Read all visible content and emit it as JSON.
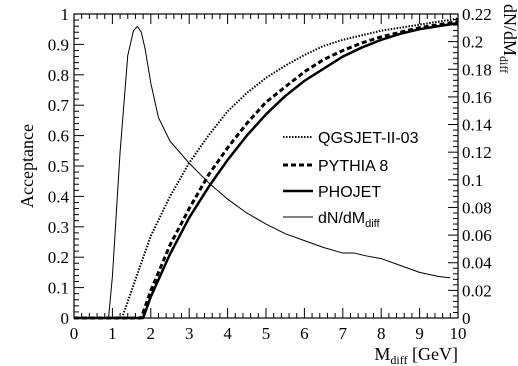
{
  "chart_data": {
    "type": "line",
    "title": "",
    "xlabel": "M",
    "xlabel_sub": "diff",
    "xlabel_unit": " [GeV]",
    "ylabel": "Acceptance",
    "y2label": "dN/dM",
    "y2label_sub": "diff",
    "xlim": [
      0,
      10
    ],
    "ylim": [
      0,
      1
    ],
    "y2lim": [
      0,
      0.22
    ],
    "xticks": [
      0,
      1,
      2,
      3,
      4,
      5,
      6,
      7,
      8,
      9,
      10
    ],
    "yticks": [
      0,
      0.1,
      0.2,
      0.3,
      0.4,
      0.5,
      0.6,
      0.7,
      0.8,
      0.9,
      1
    ],
    "ytick_labels": [
      "0",
      "0.1",
      "0.2",
      "0.3",
      "0.4",
      "0.5",
      "0.6",
      "0.7",
      "0.8",
      "0.9",
      "1"
    ],
    "y2ticks": [
      0,
      0.02,
      0.04,
      0.06,
      0.08,
      0.1,
      0.12,
      0.14,
      0.16,
      0.18,
      0.2,
      0.22
    ],
    "y2tick_labels": [
      "0",
      "0.02",
      "0.04",
      "0.06",
      "0.08",
      "0.1",
      "0.12",
      "0.14",
      "0.16",
      "0.18",
      "0.2",
      "0.22"
    ],
    "grid": false,
    "legend_position": "middle-right",
    "series": [
      {
        "name": "QGSJET-II-03",
        "style": "dotted",
        "axis": "left",
        "x": [
          1.25,
          1.5,
          2,
          2.5,
          3,
          3.5,
          4,
          4.5,
          5,
          5.5,
          6,
          6.5,
          7,
          7.5,
          8,
          8.5,
          9,
          9.5,
          10
        ],
        "y": [
          0,
          0.09,
          0.27,
          0.4,
          0.51,
          0.6,
          0.68,
          0.74,
          0.79,
          0.83,
          0.865,
          0.895,
          0.915,
          0.93,
          0.945,
          0.955,
          0.965,
          0.975,
          0.985
        ]
      },
      {
        "name": "PYTHIA 8",
        "style": "dashed",
        "axis": "left",
        "x": [
          1.75,
          2,
          2.5,
          3,
          3.5,
          4,
          4.5,
          5,
          5.5,
          6,
          6.5,
          7,
          7.5,
          8,
          8.5,
          9,
          9.5,
          10
        ],
        "y": [
          0,
          0.09,
          0.24,
          0.36,
          0.47,
          0.56,
          0.64,
          0.71,
          0.76,
          0.81,
          0.85,
          0.88,
          0.905,
          0.925,
          0.94,
          0.955,
          0.965,
          0.975
        ]
      },
      {
        "name": "PHOJET",
        "style": "solid",
        "axis": "left",
        "x": [
          1.8,
          2,
          2.5,
          3,
          3.5,
          4,
          4.5,
          5,
          5.5,
          6,
          6.5,
          7,
          7.5,
          8,
          8.5,
          9,
          9.5,
          10
        ],
        "y": [
          0,
          0.07,
          0.21,
          0.33,
          0.43,
          0.52,
          0.6,
          0.67,
          0.73,
          0.78,
          0.82,
          0.86,
          0.89,
          0.915,
          0.935,
          0.95,
          0.96,
          0.97
        ]
      },
      {
        "name": "dN/dM",
        "name_sub": "diff",
        "style": "thin",
        "axis": "right",
        "x": [
          0,
          0.9,
          1.0,
          1.2,
          1.4,
          1.55,
          1.65,
          1.75,
          1.85,
          2.0,
          2.2,
          2.5,
          3,
          3.5,
          4,
          4.5,
          5,
          5.5,
          6,
          6.5,
          7,
          7.3,
          7.6,
          8,
          8.5,
          9,
          9.5,
          9.8
        ],
        "y": [
          0,
          0,
          0.03,
          0.12,
          0.19,
          0.208,
          0.211,
          0.207,
          0.195,
          0.17,
          0.145,
          0.128,
          0.112,
          0.098,
          0.086,
          0.076,
          0.068,
          0.061,
          0.056,
          0.051,
          0.047,
          0.047,
          0.045,
          0.043,
          0.038,
          0.033,
          0.03,
          0.029
        ]
      }
    ]
  }
}
